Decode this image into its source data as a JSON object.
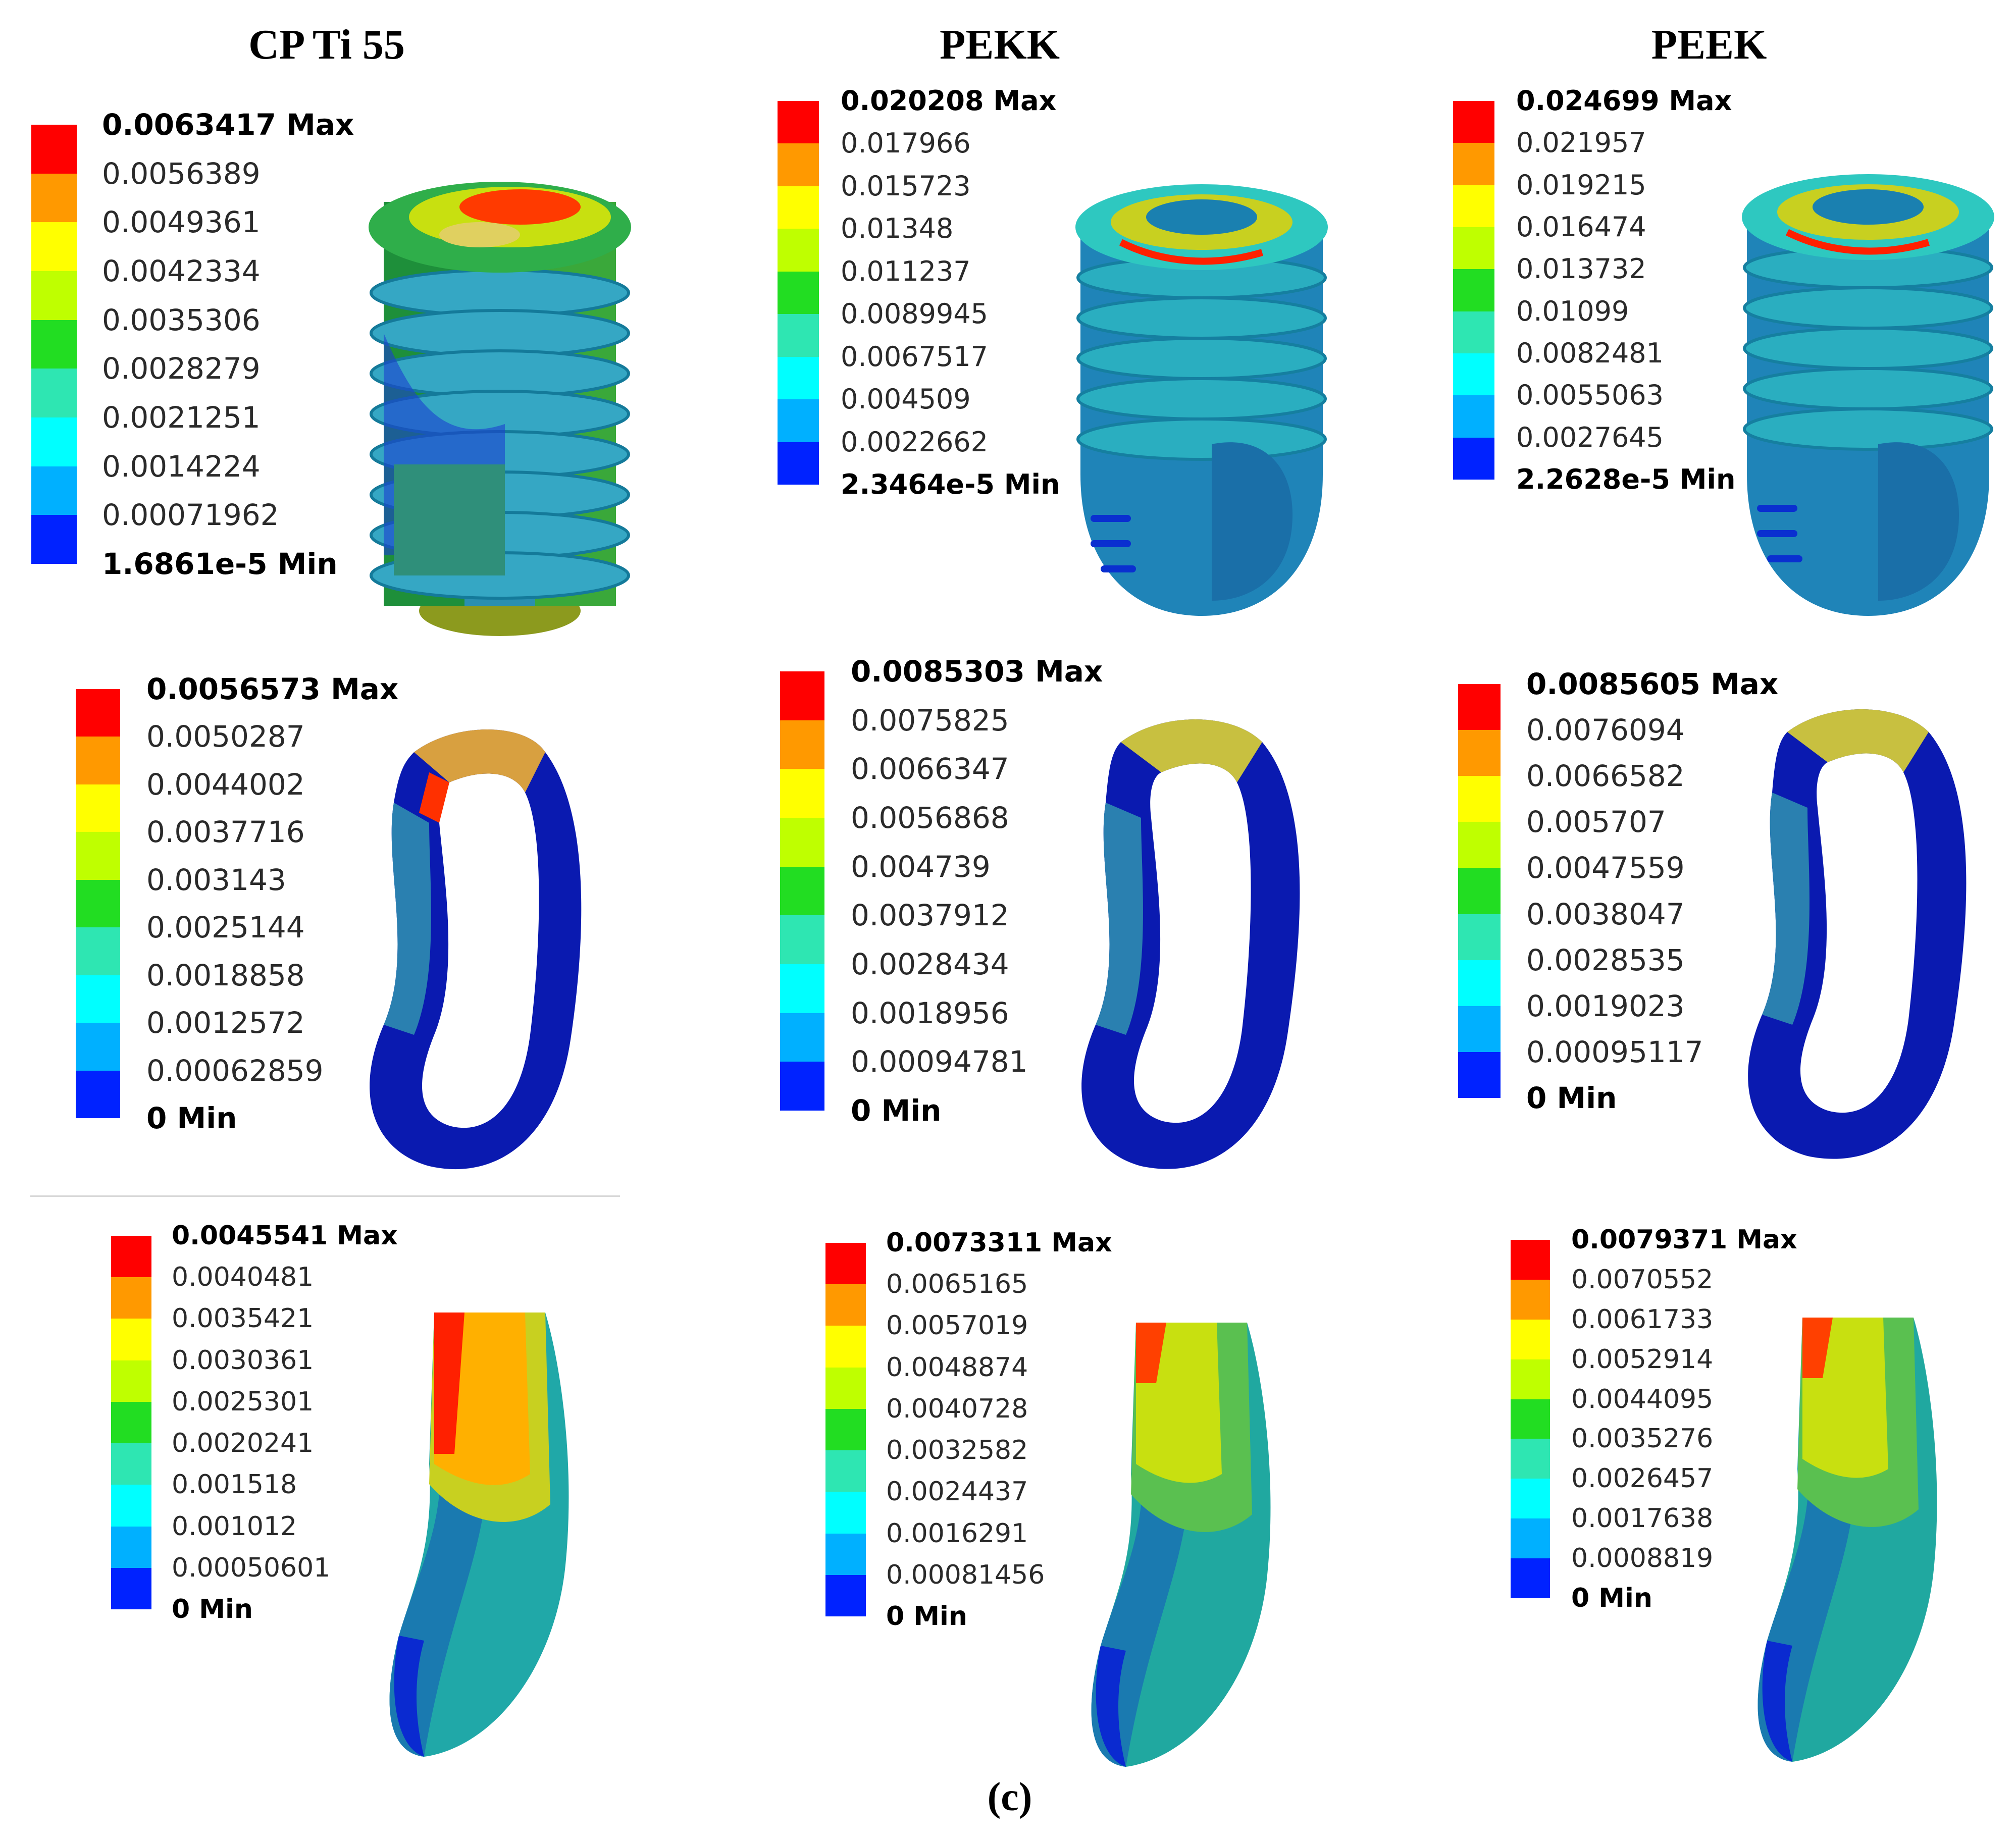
{
  "palette": [
    "#ff0000",
    "#ff9900",
    "#ffff00",
    "#bfff00",
    "#22dd22",
    "#2ee6b2",
    "#00ffff",
    "#00b0ff",
    "#0022ff"
  ],
  "columns": [
    {
      "title": "CP Ti 55"
    },
    {
      "title": "PEKK"
    },
    {
      "title": "PEEK"
    }
  ],
  "rows": [
    {
      "part": "implant",
      "legends": [
        {
          "max": "0.0063417 Max",
          "ticks": [
            "0.0056389",
            "0.0049361",
            "0.0042334",
            "0.0035306",
            "0.0028279",
            "0.0021251",
            "0.0014224",
            "0.00071962"
          ],
          "min": "1.6861e-5 Min"
        },
        {
          "max": "0.020208 Max",
          "ticks": [
            "0.017966",
            "0.015723",
            "0.01348",
            "0.011237",
            "0.0089945",
            "0.0067517",
            "0.004509",
            "0.0022662"
          ],
          "min": "2.3464e-5 Min"
        },
        {
          "max": "0.024699 Max",
          "ticks": [
            "0.021957",
            "0.019215",
            "0.016474",
            "0.013732",
            "0.01099",
            "0.0082481",
            "0.0055063",
            "0.0027645"
          ],
          "min": "2.2628e-5 Min"
        }
      ]
    },
    {
      "part": "cortical-bone",
      "legends": [
        {
          "max": "0.0056573 Max",
          "ticks": [
            "0.0050287",
            "0.0044002",
            "0.0037716",
            "0.003143",
            "0.0025144",
            "0.0018858",
            "0.0012572",
            "0.00062859"
          ],
          "min": "0 Min"
        },
        {
          "max": "0.0085303 Max",
          "ticks": [
            "0.0075825",
            "0.0066347",
            "0.0056868",
            "0.004739",
            "0.0037912",
            "0.0028434",
            "0.0018956",
            "0.00094781"
          ],
          "min": "0 Min"
        },
        {
          "max": "0.0085605 Max",
          "ticks": [
            "0.0076094",
            "0.0066582",
            "0.005707",
            "0.0047559",
            "0.0038047",
            "0.0028535",
            "0.0019023",
            "0.00095117"
          ],
          "min": "0 Min"
        }
      ]
    },
    {
      "part": "cancellous-bone",
      "legends": [
        {
          "max": "0.0045541 Max",
          "ticks": [
            "0.0040481",
            "0.0035421",
            "0.0030361",
            "0.0025301",
            "0.0020241",
            "0.001518",
            "0.001012",
            "0.00050601"
          ],
          "min": "0 Min"
        },
        {
          "max": "0.0073311 Max",
          "ticks": [
            "0.0065165",
            "0.0057019",
            "0.0048874",
            "0.0040728",
            "0.0032582",
            "0.0024437",
            "0.0016291",
            "0.00081456"
          ],
          "min": "0 Min"
        },
        {
          "max": "0.0079371 Max",
          "ticks": [
            "0.0070552",
            "0.0061733",
            "0.0052914",
            "0.0044095",
            "0.0035276",
            "0.0026457",
            "0.0017638",
            "0.0008819"
          ],
          "min": "0 Min"
        }
      ]
    }
  ],
  "caption": "(c)"
}
